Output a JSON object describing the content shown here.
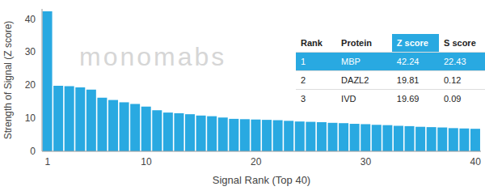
{
  "chart_data": {
    "type": "bar",
    "y_label": "Strength of Signal (Z score)",
    "x_label": "Signal Rank (Top 40)",
    "annotations": [
      "monomabs"
    ],
    "categories": [
      "1",
      null,
      null,
      null,
      null,
      null,
      null,
      null,
      null,
      "10",
      null,
      null,
      null,
      null,
      null,
      null,
      null,
      null,
      null,
      "20",
      null,
      null,
      null,
      null,
      null,
      null,
      null,
      null,
      null,
      "30",
      null,
      null,
      null,
      null,
      null,
      null,
      null,
      null,
      null,
      "40"
    ],
    "values": [
      42.24,
      19.81,
      19.69,
      19.3,
      18.6,
      16.2,
      15.5,
      14.8,
      14.3,
      13.5,
      12.4,
      11.7,
      11.5,
      11.2,
      10.8,
      10.6,
      10.2,
      9.8,
      9.7,
      9.6,
      9.5,
      9.4,
      9.2,
      9.0,
      8.9,
      8.8,
      8.6,
      8.5,
      8.3,
      8.2,
      8.0,
      7.9,
      7.7,
      7.6,
      7.4,
      7.3,
      7.2,
      7.0,
      6.9,
      6.8
    ],
    "color": "#29a9e1",
    "ylim": [
      0,
      43
    ],
    "yticks": [
      0,
      10,
      20,
      30,
      40
    ],
    "grid": false,
    "table": {
      "columns": [
        "Rank",
        "Protein",
        "Z score",
        "S score"
      ],
      "rows": [
        [
          1,
          "MBP",
          42.24,
          22.43
        ],
        [
          2,
          "DAZL2",
          19.81,
          0.12
        ],
        [
          3,
          "IVD",
          19.69,
          0.09
        ]
      ]
    }
  }
}
